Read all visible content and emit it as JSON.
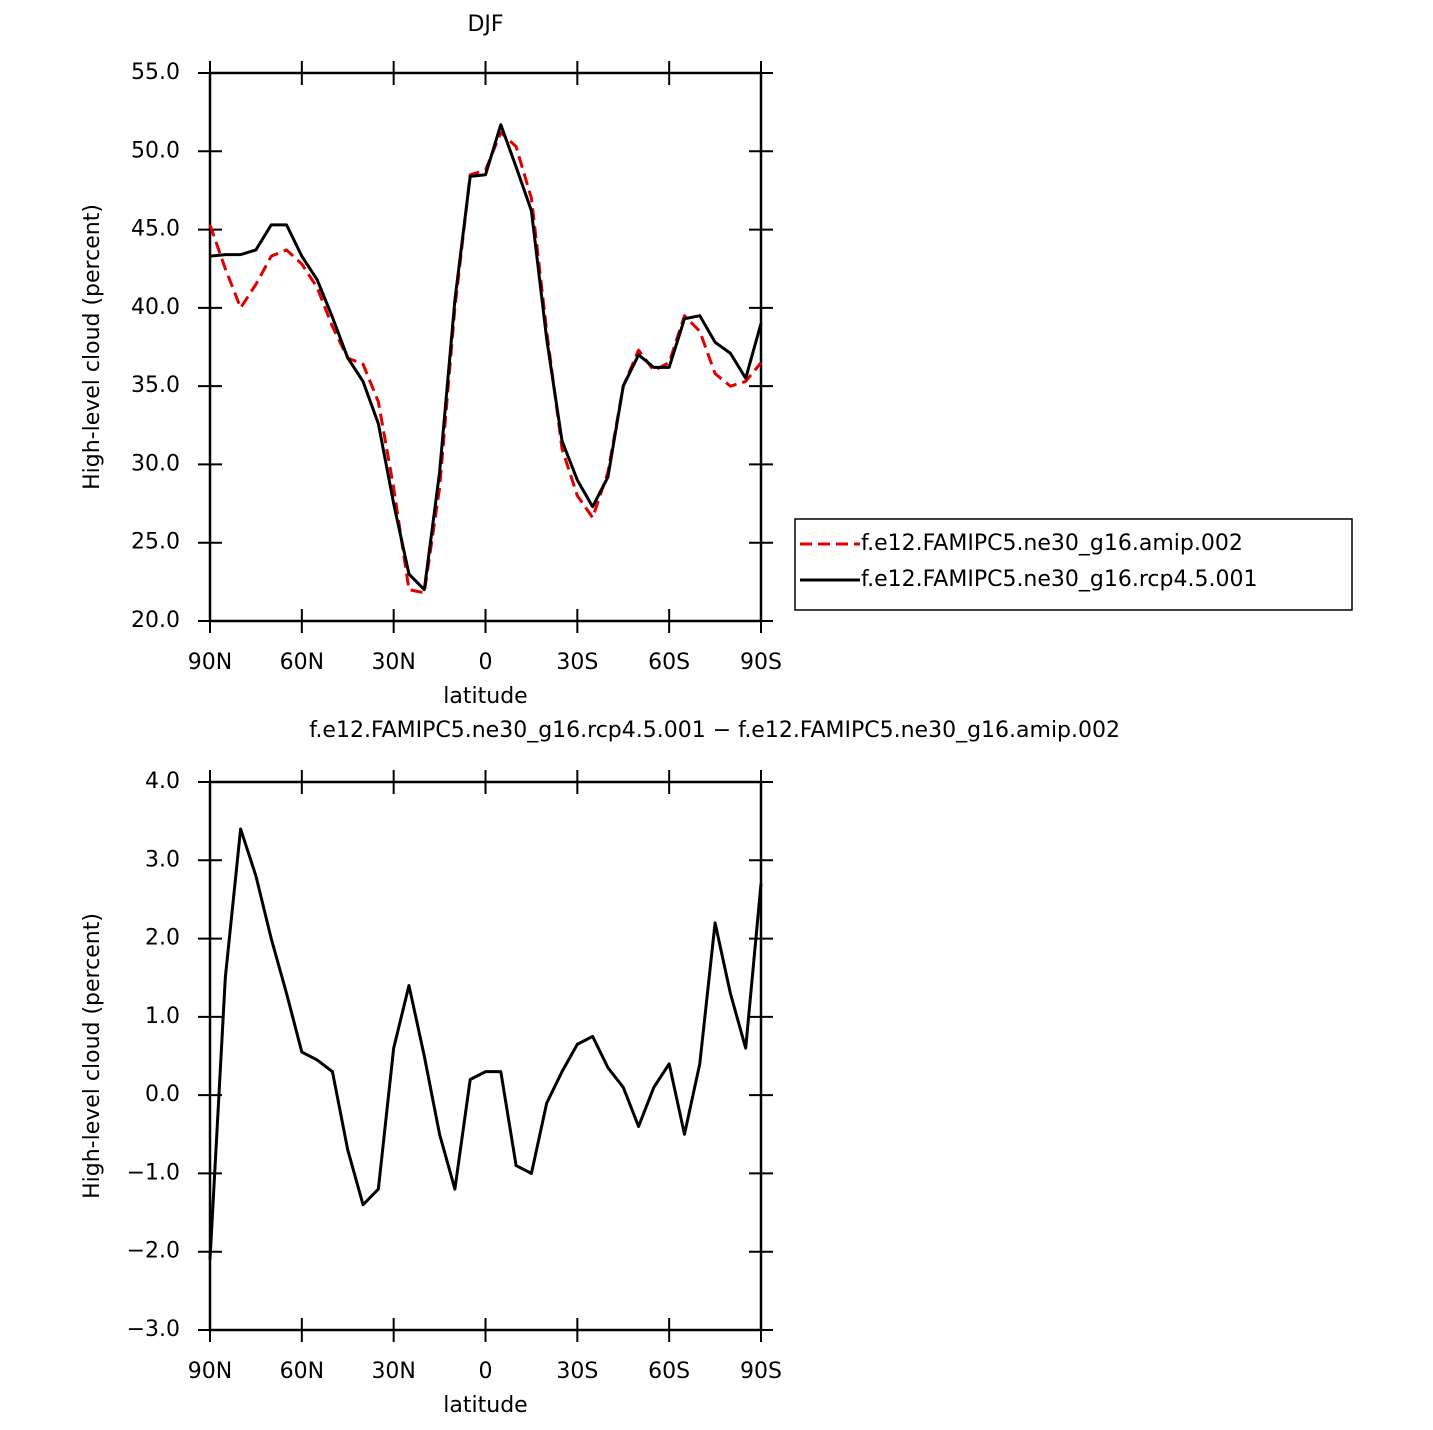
{
  "chart_data": [
    {
      "type": "line",
      "title": "DJF",
      "x_label": "latitude",
      "y_label": "High-level cloud (percent)",
      "x": [
        90,
        85,
        80,
        75,
        70,
        65,
        60,
        55,
        50,
        45,
        40,
        35,
        30,
        25,
        20,
        15,
        10,
        5,
        0,
        -5,
        -10,
        -15,
        -20,
        -25,
        -30,
        -35,
        -40,
        -45,
        -50,
        -55,
        -60,
        -65,
        -70,
        -75,
        -80,
        -85,
        -90
      ],
      "xlim": [
        90,
        -90
      ],
      "xticks": [
        {
          "value": 90,
          "label": "90N"
        },
        {
          "value": 60,
          "label": "60N"
        },
        {
          "value": 30,
          "label": "30N"
        },
        0,
        {
          "value": -30,
          "label": "30S"
        },
        {
          "value": -60,
          "label": "60S"
        },
        {
          "value": -90,
          "label": "90S"
        }
      ],
      "ylim": [
        20,
        55
      ],
      "yticks": [
        {
          "value": 20,
          "label": "20.0"
        },
        {
          "value": 25,
          "label": "25.0"
        },
        {
          "value": 30,
          "label": "30.0"
        },
        {
          "value": 35,
          "label": "35.0"
        },
        {
          "value": 40,
          "label": "40.0"
        },
        {
          "value": 45,
          "label": "45.0"
        },
        {
          "value": 50,
          "label": "50.0"
        },
        {
          "value": 55,
          "label": "55.0"
        }
      ],
      "legend": "right",
      "series": [
        {
          "name": "f.e12.FAMIPC5.ne30_g16.amip.002",
          "color": "#e00000",
          "dash": "dashed",
          "values": [
            45.3,
            42.5,
            40.0,
            41.5,
            43.3,
            43.7,
            42.8,
            41.3,
            38.8,
            36.8,
            36.4,
            34.0,
            28.5,
            22.0,
            21.8,
            28.5,
            40,
            48.5,
            48.8,
            51.2,
            50.3,
            47,
            38.5,
            31,
            28,
            26.6,
            29.5,
            35,
            37.3,
            36,
            36.5,
            39.5,
            38.5,
            35.8,
            35,
            35.3,
            36.5
          ]
        },
        {
          "name": "f.e12.FAMIPC5.ne30_g16.rcp4.5.001",
          "color": "#000000",
          "dash": "solid",
          "values": [
            43.3,
            43.4,
            43.4,
            43.7,
            45.3,
            45.3,
            43.3,
            41.8,
            39.4,
            36.8,
            35.3,
            32.6,
            27.5,
            23,
            22,
            29.5,
            40.5,
            48.4,
            48.5,
            51.7,
            49,
            46.2,
            38,
            31.5,
            29,
            27.3,
            29.2,
            35,
            37,
            36.2,
            36.2,
            39.3,
            39.5,
            37.8,
            37.1,
            35.5,
            39.0
          ]
        }
      ]
    },
    {
      "type": "line",
      "title": "f.e12.FAMIPC5.ne30_g16.rcp4.5.001 − f.e12.FAMIPC5.ne30_g16.amip.002",
      "x_label": "latitude",
      "y_label": "High-level cloud (percent)",
      "x": [
        90,
        85,
        80,
        75,
        70,
        65,
        60,
        55,
        50,
        45,
        40,
        35,
        30,
        25,
        20,
        15,
        10,
        5,
        0,
        -5,
        -10,
        -15,
        -20,
        -25,
        -30,
        -35,
        -40,
        -45,
        -50,
        -55,
        -60,
        -65,
        -70,
        -75,
        -80,
        -85,
        -90
      ],
      "xlim": [
        90,
        -90
      ],
      "xticks": [
        {
          "value": 90,
          "label": "90N"
        },
        {
          "value": 60,
          "label": "60N"
        },
        {
          "value": 30,
          "label": "30N"
        },
        0,
        {
          "value": -30,
          "label": "30S"
        },
        {
          "value": -60,
          "label": "60S"
        },
        {
          "value": -90,
          "label": "90S"
        }
      ],
      "ylim": [
        -3,
        4
      ],
      "yticks": [
        {
          "value": -3,
          "label": "−3.0"
        },
        {
          "value": -2,
          "label": "−2.0"
        },
        {
          "value": -1,
          "label": "−1.0"
        },
        {
          "value": 0,
          "label": "0.0"
        },
        {
          "value": 1,
          "label": "1.0"
        },
        {
          "value": 2,
          "label": "2.0"
        },
        {
          "value": 3,
          "label": "3.0"
        },
        {
          "value": 4,
          "label": "4.0"
        }
      ],
      "series": [
        {
          "color": "#000000",
          "dash": "solid",
          "values": [
            -2.1,
            1.5,
            3.4,
            2.8,
            2.0,
            1.3,
            0.55,
            0.45,
            0.3,
            -0.7,
            -1.4,
            -1.2,
            0.6,
            1.4,
            0.5,
            -0.5,
            -1.2,
            0.2,
            0.3,
            0.3,
            -0.9,
            -1.0,
            -0.1,
            0.3,
            0.65,
            0.75,
            0.35,
            0.1,
            -0.4,
            0.1,
            0.4,
            -0.5,
            0.4,
            2.2,
            1.3,
            0.6,
            2.7
          ]
        }
      ]
    }
  ]
}
